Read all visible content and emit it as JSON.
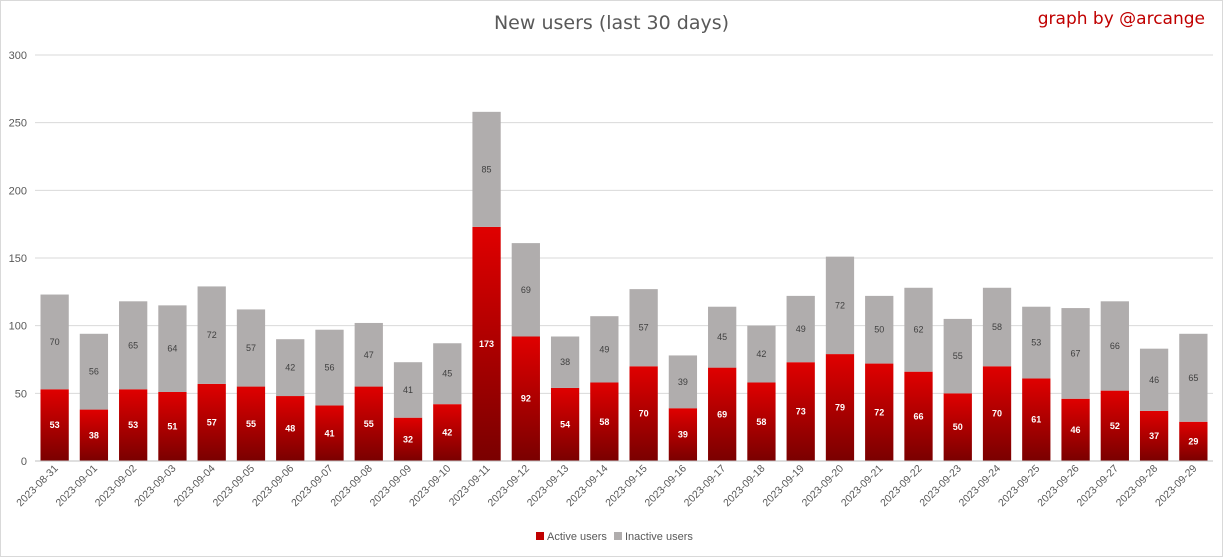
{
  "chart_data": {
    "type": "bar",
    "stacked": true,
    "title": "New users (last 30 days)",
    "credit": "graph by @arcange",
    "categories": [
      "2023-08-31",
      "2023-09-01",
      "2023-09-02",
      "2023-09-03",
      "2023-09-04",
      "2023-09-05",
      "2023-09-06",
      "2023-09-07",
      "2023-09-08",
      "2023-09-09",
      "2023-09-10",
      "2023-09-11",
      "2023-09-12",
      "2023-09-13",
      "2023-09-14",
      "2023-09-15",
      "2023-09-16",
      "2023-09-17",
      "2023-09-18",
      "2023-09-19",
      "2023-09-20",
      "2023-09-21",
      "2023-09-22",
      "2023-09-23",
      "2023-09-24",
      "2023-09-25",
      "2023-09-26",
      "2023-09-27",
      "2023-09-28",
      "2023-09-29"
    ],
    "series": [
      {
        "name": "Active users",
        "color": "#c00000",
        "values": [
          53,
          38,
          53,
          51,
          57,
          55,
          48,
          41,
          55,
          32,
          42,
          173,
          92,
          54,
          58,
          70,
          39,
          69,
          58,
          73,
          79,
          72,
          66,
          50,
          70,
          61,
          46,
          52,
          37,
          29
        ]
      },
      {
        "name": "Inactive users",
        "color": "#b0adad",
        "values": [
          70,
          56,
          65,
          64,
          72,
          57,
          42,
          56,
          47,
          41,
          45,
          85,
          69,
          38,
          49,
          57,
          39,
          45,
          42,
          49,
          72,
          50,
          62,
          55,
          58,
          53,
          67,
          66,
          46,
          65
        ]
      }
    ],
    "yticks": [
      "0",
      "50",
      "100",
      "150",
      "200",
      "250",
      "300"
    ],
    "ylim": [
      0,
      300
    ],
    "xlabel": "",
    "ylabel": "",
    "grid": true,
    "legend_position": "bottom-center"
  }
}
